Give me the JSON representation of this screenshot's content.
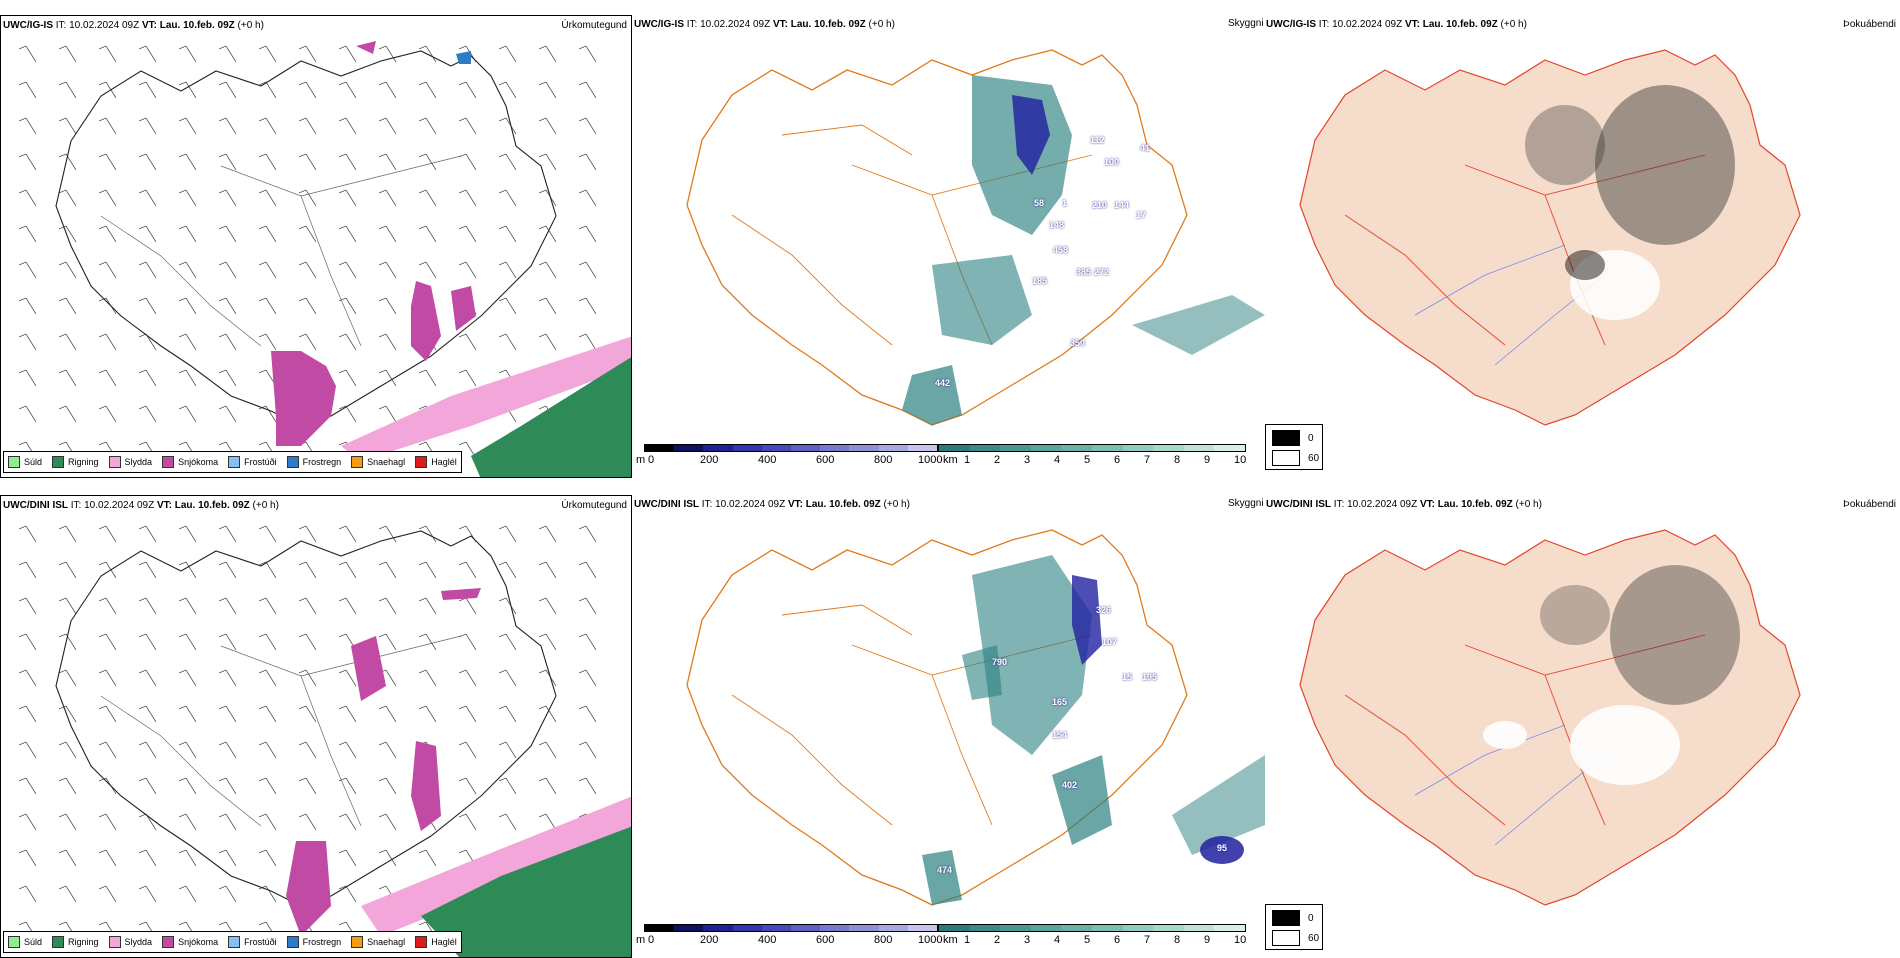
{
  "top": {
    "precip": {
      "title_bold": "UWC/IG-IS",
      "title_it": " IT: 10.02.2024 09Z ",
      "title_vt_bold": "VT: Lau. 10.feb. 09Z",
      "title_tail": " (+0 h)",
      "name": "Úrkomutegund"
    },
    "vis": {
      "title_bold": "UWC/IG-IS",
      "title_it": " IT: 10.02.2024 09Z ",
      "title_vt_bold": "VT: Lau. 10.feb. 09Z",
      "title_tail": " (+0 h)",
      "name": "Skyggni",
      "marks": [
        "112",
        "100",
        "41",
        "58",
        "1",
        "210",
        "144",
        "17",
        "148",
        "458",
        "385",
        "272",
        "185",
        "350",
        "442"
      ]
    },
    "cloud": {
      "title_bold": "UWC/IG-IS",
      "title_it": " IT: 10.02.2024 09Z ",
      "title_vt_bold": "VT: Lau. 10.feb. 09Z",
      "title_tail": " (+0 h)",
      "name": "Þokuábendi"
    }
  },
  "bottom": {
    "precip": {
      "title_bold": "UWC/DINI ISL",
      "title_it": " IT: 10.02.2024 09Z ",
      "title_vt_bold": "VT: Lau. 10.feb. 09Z",
      "title_tail": " (+0 h)",
      "name": "Úrkomutegund"
    },
    "vis": {
      "title_bold": "UWC/DINI ISL",
      "title_it": " IT: 10.02.2024 09Z ",
      "title_vt_bold": "VT: Lau. 10.feb. 09Z",
      "title_tail": " (+0 h)",
      "name": "Skyggni",
      "marks": [
        "790",
        "326",
        "107",
        "15",
        "195",
        "165",
        "154",
        "402",
        "474",
        "95"
      ]
    },
    "cloud": {
      "title_bold": "UWC/DINI ISL",
      "title_it": " IT: 10.02.2024 09Z ",
      "title_vt_bold": "VT: Lau. 10.feb. 09Z",
      "title_tail": " (+0 h)",
      "name": "Þokuábendi"
    }
  },
  "precip_legend": [
    {
      "label": "Súld",
      "color": "#90ee90"
    },
    {
      "label": "Rigning",
      "color": "#2e8b57"
    },
    {
      "label": "Slydda",
      "color": "#f2a6d9"
    },
    {
      "label": "Snjókoma",
      "color": "#c04aa4"
    },
    {
      "label": "Frostúði",
      "color": "#87bff0"
    },
    {
      "label": "Frostregn",
      "color": "#2e7bc8"
    },
    {
      "label": "Snaehagl",
      "color": "#f39c12"
    },
    {
      "label": "Haglél",
      "color": "#e01b1b"
    }
  ],
  "vis_scale": {
    "m_unit": "m",
    "km_unit": "km",
    "m_labels": [
      "0",
      "200",
      "400",
      "600",
      "800",
      "1000"
    ],
    "km_labels": [
      "1",
      "2",
      "3",
      "4",
      "5",
      "6",
      "7",
      "8",
      "9",
      "10"
    ],
    "m_colors": [
      "#000000",
      "#101060",
      "#202090",
      "#3333aa",
      "#4848bb",
      "#6060c4",
      "#7878cc",
      "#9090d6",
      "#a8a8e0",
      "#c4c4ec"
    ],
    "km_colors": [
      "#2b7b7b",
      "#3a8a86",
      "#4a9890",
      "#5aa69a",
      "#6ab2a6",
      "#7cbeb2",
      "#90cbc0",
      "#a6d7cd",
      "#bfe3db",
      "#d8eee9"
    ]
  },
  "cloud_legend": [
    {
      "label": "0",
      "color": "#000000"
    },
    {
      "label": "60",
      "color": "#ffffff"
    }
  ],
  "colors": {
    "snow": "#c04aa4",
    "sleet": "#f2a6d9",
    "rain": "#2e8b57",
    "vis_teal": "#2b8080",
    "vis_blue": "#2020a0",
    "road": "#e07a1c",
    "land": "#f5dccb",
    "road_red": "#e2452b",
    "river": "#7a8ae8"
  }
}
